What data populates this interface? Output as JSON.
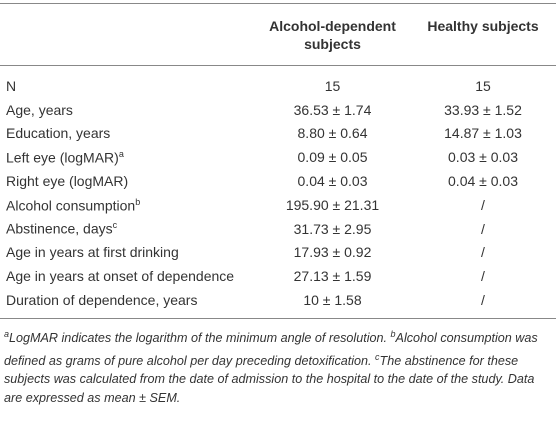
{
  "table": {
    "header": [
      "",
      "Alcohol-dependent subjects",
      "Healthy subjects"
    ],
    "rows": [
      [
        {
          "text": "N"
        },
        "15",
        "15"
      ],
      [
        {
          "text": "Age, years"
        },
        "36.53 ± 1.74",
        "33.93 ± 1.52"
      ],
      [
        {
          "text": "Education, years"
        },
        "8.80 ± 0.64",
        "14.87 ± 1.03"
      ],
      [
        {
          "text": "Left eye (logMAR)",
          "sup": "a"
        },
        "0.09 ± 0.05",
        "0.03 ± 0.03"
      ],
      [
        {
          "text": "Right eye (logMAR)"
        },
        "0.04 ± 0.03",
        "0.04 ± 0.03"
      ],
      [
        {
          "text": "Alcohol consumption",
          "sup": "b"
        },
        "195.90 ± 21.31",
        "/"
      ],
      [
        {
          "text": "Abstinence, days",
          "sup": "c"
        },
        "31.73 ± 2.95",
        "/"
      ],
      [
        {
          "text": "Age in years at first drinking"
        },
        "17.93 ± 0.92",
        "/"
      ],
      [
        {
          "text": "Age in years at onset of dependence"
        },
        "27.13 ± 1.59",
        "/"
      ],
      [
        {
          "text": "Duration of dependence, years"
        },
        "10 ± 1.58",
        "/"
      ]
    ]
  },
  "footnotes": [
    {
      "sup": "a",
      "text": "LogMAR indicates the logarithm of the minimum angle of resolution."
    },
    {
      "sup": "b",
      "text": "Alcohol consumption was defined as grams of pure alcohol per day preceding detoxification."
    },
    {
      "sup": "c",
      "text": "The abstinence for these subjects was calculated from the date of admission to the hospital to the date of the study. Data are expressed as mean ± SEM."
    }
  ]
}
